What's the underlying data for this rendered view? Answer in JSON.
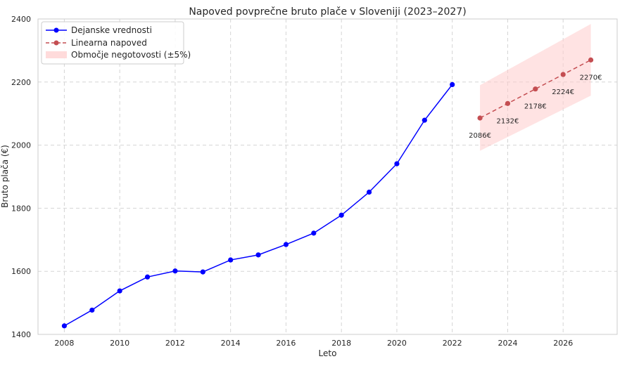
{
  "chart_data": {
    "type": "line",
    "title": "Napoved povprečne bruto plače v Sloveniji (2023–2027)",
    "xlabel": "Leto",
    "ylabel": "Bruto plača (€)",
    "xlim": [
      2007.05,
      2027.95
    ],
    "ylim": [
      1400,
      2400
    ],
    "xticks": [
      2008,
      2010,
      2012,
      2014,
      2016,
      2018,
      2020,
      2022,
      2024,
      2026
    ],
    "yticks": [
      1400,
      1600,
      1800,
      2000,
      2200,
      2400
    ],
    "grid": true,
    "legend_position": "top-left",
    "series": [
      {
        "name": "Dejanske vrednosti",
        "style": "solid-line-circle-markers",
        "color": "#0000ff",
        "x": [
          2008,
          2009,
          2010,
          2011,
          2012,
          2013,
          2014,
          2015,
          2016,
          2017,
          2018,
          2019,
          2020,
          2021,
          2022
        ],
        "y": [
          1427,
          1477,
          1538,
          1582,
          1601,
          1598,
          1636,
          1652,
          1685,
          1721,
          1778,
          1851,
          1941,
          2079,
          2192
        ]
      },
      {
        "name": "Linearna napoved",
        "style": "dashed-line-circle-markers",
        "color": "#c44e52",
        "x": [
          2023,
          2024,
          2025,
          2026,
          2027
        ],
        "y": [
          2086,
          2132,
          2178,
          2224,
          2270
        ],
        "labels": [
          "2086€",
          "2132€",
          "2178€",
          "2224€",
          "2270€"
        ]
      }
    ],
    "band": {
      "name": "Območje negotovosti (±5%)",
      "color": "#ffcccc",
      "x": [
        2023,
        2027
      ],
      "lower": [
        1982,
        2157
      ],
      "upper": [
        2190,
        2384
      ]
    }
  }
}
